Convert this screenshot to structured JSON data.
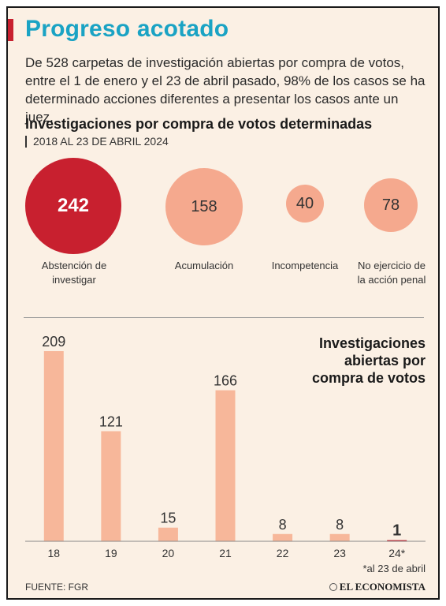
{
  "header": {
    "title": "Progreso acotado",
    "intro": "De 528 carpetas de investigación abiertas por compra de votos, entre el 1 de enero y el 23 de abril pasado, 98% de los casos se ha determinado acciones diferentes a presentar los casos ante un juez."
  },
  "section": {
    "title": "Investigaciones por compra de votos determinadas",
    "subtitle": "2018 AL 23 DE ABRIL 2024"
  },
  "circles": [
    {
      "value": "242",
      "label": "Abstención de investigar"
    },
    {
      "value": "158",
      "label": "Acumulación"
    },
    {
      "value": "40",
      "label": "Incompetencia"
    },
    {
      "value": "78",
      "label": "No ejercicio de la acción penal"
    }
  ],
  "chart_data": [
    {
      "type": "bubble",
      "title": "Investigaciones por compra de votos determinadas",
      "categories": [
        "Abstención de investigar",
        "Acumulación",
        "Incompetencia",
        "No ejercicio de la acción penal"
      ],
      "values": [
        242,
        158,
        40,
        78
      ]
    },
    {
      "type": "bar",
      "title": "Investigaciones abiertas por compra de votos",
      "categories": [
        "18",
        "19",
        "20",
        "21",
        "22",
        "23",
        "24*"
      ],
      "values": [
        209,
        121,
        15,
        166,
        8,
        8,
        1
      ],
      "ylim": [
        0,
        209
      ],
      "grid": false,
      "legend": "none"
    }
  ],
  "chart": {
    "title_line1": "Investigaciones",
    "title_line2": "abiertas por",
    "title_line3": "compra de votos"
  },
  "footer": {
    "footnote": "*al 23 de abril",
    "source": "FUENTE: FGR",
    "brand": "EL ECONOMISTA"
  },
  "colors": {
    "bar": "#f7b79a",
    "circle_highlight": "#c8202f",
    "circle": "#f5a98e",
    "title": "#1aa3c4"
  }
}
